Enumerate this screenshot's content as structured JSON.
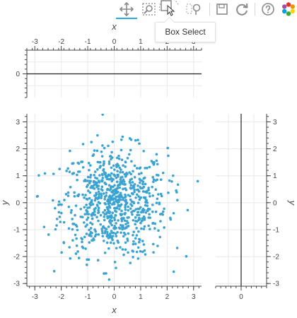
{
  "toolbar": {
    "tools": [
      {
        "name": "pan-tool",
        "icon": "move-arrows-icon",
        "active": true
      },
      {
        "name": "box-zoom-tool",
        "icon": "box-zoom-icon",
        "active": false
      },
      {
        "name": "box-select-tool",
        "icon": "box-select-icon",
        "active": false,
        "hovered": true
      },
      {
        "name": "lasso-select-tool",
        "icon": "lasso-icon",
        "active": false
      },
      {
        "name": "save-tool",
        "icon": "save-icon",
        "active": false
      },
      {
        "name": "reset-tool",
        "icon": "reset-icon",
        "active": false
      },
      {
        "name": "help-tool",
        "icon": "help-icon",
        "active": false
      },
      {
        "name": "bokeh-logo",
        "icon": "bokeh-logo-icon",
        "active": false
      }
    ],
    "tooltip": "Box Select"
  },
  "colors": {
    "accent": "#26aae1",
    "points": "#3aa3d1",
    "grid": "#e8e8e8",
    "axis": "#444444"
  },
  "chart_data": [
    {
      "type": "line",
      "panel": "top histogram",
      "xlabel": "x",
      "ylabel": "",
      "xlim": [
        -3.3,
        3.3
      ],
      "ylim": [
        -1,
        1
      ],
      "x_ticks": [
        -3,
        -2,
        -1,
        0,
        1,
        2,
        3
      ],
      "y_ticks": [
        0
      ],
      "x_axis_location": "top",
      "grid": true,
      "series": [
        {
          "x": [
            -3.3,
            3.3
          ],
          "y": [
            0,
            0
          ]
        }
      ]
    },
    {
      "type": "scatter",
      "panel": "main",
      "xlabel": "x",
      "ylabel": "y",
      "xlim": [
        -3.3,
        3.3
      ],
      "ylim": [
        -3.1,
        3.3
      ],
      "x_ticks": [
        -3,
        -2,
        -1,
        0,
        1,
        2,
        3
      ],
      "y_ticks": [
        -3,
        -2,
        -1,
        0,
        1,
        2,
        3
      ],
      "grid": true,
      "point_count": 800,
      "distribution": "standard normal in x and y, mean 0, std 1"
    },
    {
      "type": "line",
      "panel": "right histogram",
      "xlabel": "",
      "ylabel": "y",
      "xlim": [
        -1,
        1
      ],
      "ylim": [
        -3.1,
        3.3
      ],
      "x_ticks": [
        0
      ],
      "y_ticks": [
        -3,
        -2,
        -1,
        0,
        1,
        2,
        3
      ],
      "y_axis_location": "right",
      "grid": true,
      "series": [
        {
          "x": [
            0,
            0
          ],
          "y": [
            -3.1,
            3.3
          ]
        }
      ]
    }
  ]
}
